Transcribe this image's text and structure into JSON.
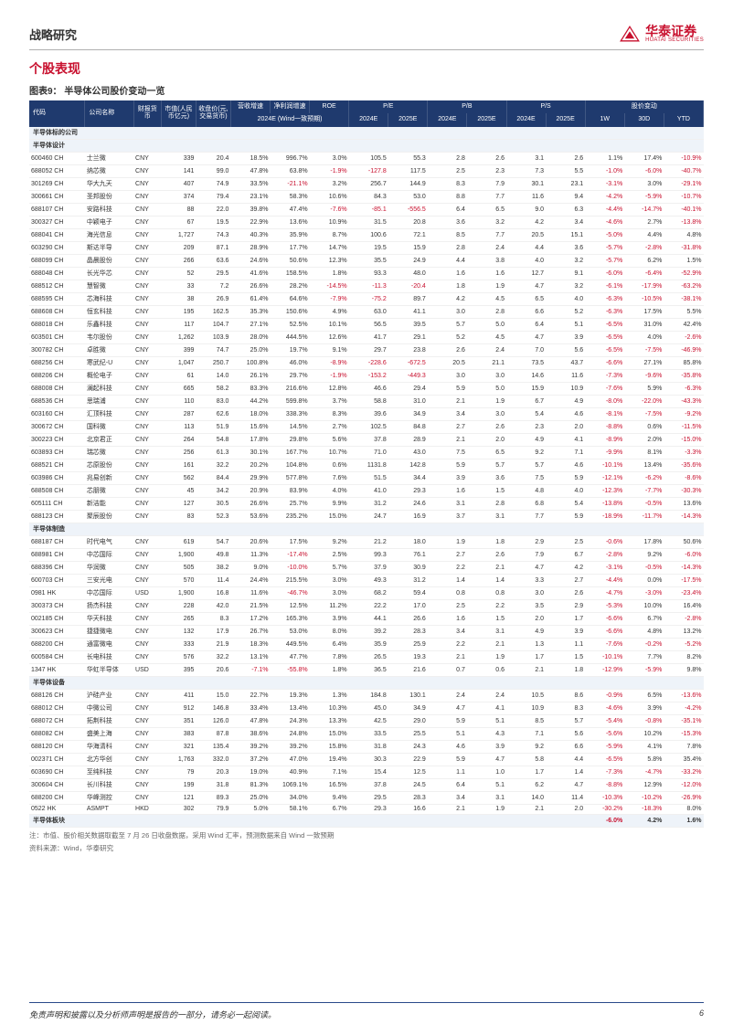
{
  "header": {
    "title": "战略研究"
  },
  "logo": {
    "name": "华泰证券",
    "sub": "HUATAI SECURITIES"
  },
  "section": {
    "title": "个股表现",
    "chart_label": "图表9：",
    "chart_title": "半导体公司股价变动一览"
  },
  "columns": {
    "code": "代码",
    "name": "公司名称",
    "currency": "财报货币",
    "mv": "市值(人民币亿元)",
    "price": "收盘价(元,交易货币)",
    "rev_g": "营收增速",
    "np_g": "净利润增速",
    "roe": "ROE",
    "pe": "P/E",
    "pb": "P/B",
    "ps": "P/S",
    "chg": "股价变动",
    "y24": "2024E",
    "y25": "2025E",
    "sub24": "2024E (Wind一致预期)",
    "w1": "1W",
    "d30": "30D",
    "ytd": "YTD"
  },
  "groups": [
    "半导体标的公司",
    "半导体设计",
    "半导体制造",
    "半导体设备",
    "半导体板块"
  ],
  "rows_design": [
    [
      "600460 CH",
      "士兰微",
      "CNY",
      "339",
      "20.4",
      "18.5%",
      "996.7%",
      "3.0%",
      "105.5",
      "55.3",
      "2.8",
      "2.6",
      "3.1",
      "2.6",
      "1.1%",
      "17.4%",
      "-10.9%"
    ],
    [
      "688052 CH",
      "纳芯微",
      "CNY",
      "141",
      "99.0",
      "47.8%",
      "63.8%",
      "-1.9%",
      "-127.8",
      "117.5",
      "2.5",
      "2.3",
      "7.3",
      "5.5",
      "-1.0%",
      "-6.0%",
      "-40.7%"
    ],
    [
      "301269 CH",
      "华大九天",
      "CNY",
      "407",
      "74.9",
      "33.5%",
      "-21.1%",
      "3.2%",
      "256.7",
      "144.9",
      "8.3",
      "7.9",
      "30.1",
      "23.1",
      "-3.1%",
      "3.0%",
      "-29.1%"
    ],
    [
      "300661 CH",
      "圣邦股份",
      "CNY",
      "374",
      "79.4",
      "23.1%",
      "58.3%",
      "10.6%",
      "84.3",
      "53.0",
      "8.8",
      "7.7",
      "11.6",
      "9.4",
      "-4.2%",
      "-5.9%",
      "-10.7%"
    ],
    [
      "688107 CH",
      "安路科技",
      "CNY",
      "88",
      "22.0",
      "39.8%",
      "47.4%",
      "-7.6%",
      "-85.1",
      "-556.5",
      "6.4",
      "6.5",
      "9.0",
      "6.3",
      "-4.4%",
      "-14.7%",
      "-40.1%"
    ],
    [
      "300327 CH",
      "中颖电子",
      "CNY",
      "67",
      "19.5",
      "22.9%",
      "13.6%",
      "10.9%",
      "31.5",
      "20.8",
      "3.6",
      "3.2",
      "4.2",
      "3.4",
      "-4.6%",
      "2.7%",
      "-13.8%"
    ],
    [
      "688041 CH",
      "海光信息",
      "CNY",
      "1,727",
      "74.3",
      "40.3%",
      "35.9%",
      "8.7%",
      "100.6",
      "72.1",
      "8.5",
      "7.7",
      "20.5",
      "15.1",
      "-5.0%",
      "4.4%",
      "4.8%"
    ],
    [
      "603290 CH",
      "斯达半导",
      "CNY",
      "209",
      "87.1",
      "28.9%",
      "17.7%",
      "14.7%",
      "19.5",
      "15.9",
      "2.8",
      "2.4",
      "4.4",
      "3.6",
      "-5.7%",
      "-2.8%",
      "-31.8%"
    ],
    [
      "688099 CH",
      "晶晨股份",
      "CNY",
      "266",
      "63.6",
      "24.6%",
      "50.6%",
      "12.3%",
      "35.5",
      "24.9",
      "4.4",
      "3.8",
      "4.0",
      "3.2",
      "-5.7%",
      "6.2%",
      "1.5%"
    ],
    [
      "688048 CH",
      "长光华芯",
      "CNY",
      "52",
      "29.5",
      "41.6%",
      "158.5%",
      "1.8%",
      "93.3",
      "48.0",
      "1.6",
      "1.6",
      "12.7",
      "9.1",
      "-6.0%",
      "-6.4%",
      "-52.9%"
    ],
    [
      "688512 CH",
      "慧智微",
      "CNY",
      "33",
      "7.2",
      "26.6%",
      "28.2%",
      "-14.5%",
      "-11.3",
      "-20.4",
      "1.8",
      "1.9",
      "4.7",
      "3.2",
      "-6.1%",
      "-17.9%",
      "-63.2%"
    ],
    [
      "688595 CH",
      "芯海科技",
      "CNY",
      "38",
      "26.9",
      "61.4%",
      "64.6%",
      "-7.9%",
      "-75.2",
      "89.7",
      "4.2",
      "4.5",
      "6.5",
      "4.0",
      "-6.3%",
      "-10.5%",
      "-38.1%"
    ],
    [
      "688608 CH",
      "恒玄科技",
      "CNY",
      "195",
      "162.5",
      "35.3%",
      "150.6%",
      "4.9%",
      "63.0",
      "41.1",
      "3.0",
      "2.8",
      "6.6",
      "5.2",
      "-6.3%",
      "17.5%",
      "5.5%"
    ],
    [
      "688018 CH",
      "乐鑫科技",
      "CNY",
      "117",
      "104.7",
      "27.1%",
      "52.5%",
      "10.1%",
      "56.5",
      "39.5",
      "5.7",
      "5.0",
      "6.4",
      "5.1",
      "-6.5%",
      "31.0%",
      "42.4%"
    ],
    [
      "603501 CH",
      "韦尔股份",
      "CNY",
      "1,262",
      "103.9",
      "28.0%",
      "444.5%",
      "12.6%",
      "41.7",
      "29.1",
      "5.2",
      "4.5",
      "4.7",
      "3.9",
      "-6.5%",
      "4.0%",
      "-2.6%"
    ],
    [
      "300782 CH",
      "卓胜微",
      "CNY",
      "399",
      "74.7",
      "25.0%",
      "19.7%",
      "9.1%",
      "29.7",
      "23.8",
      "2.6",
      "2.4",
      "7.0",
      "5.6",
      "-6.5%",
      "-7.5%",
      "-46.9%"
    ],
    [
      "688256 CH",
      "寒武纪-U",
      "CNY",
      "1,047",
      "250.7",
      "100.8%",
      "46.0%",
      "-8.9%",
      "-228.6",
      "-672.5",
      "20.5",
      "21.1",
      "73.5",
      "43.7",
      "-6.6%",
      "27.1%",
      "85.8%"
    ],
    [
      "688206 CH",
      "概伦电子",
      "CNY",
      "61",
      "14.0",
      "26.1%",
      "29.7%",
      "-1.9%",
      "-153.2",
      "-449.3",
      "3.0",
      "3.0",
      "14.6",
      "11.6",
      "-7.3%",
      "-9.6%",
      "-35.8%"
    ],
    [
      "688008 CH",
      "澜起科技",
      "CNY",
      "665",
      "58.2",
      "83.3%",
      "216.6%",
      "12.8%",
      "46.6",
      "29.4",
      "5.9",
      "5.0",
      "15.9",
      "10.9",
      "-7.6%",
      "5.9%",
      "-6.3%"
    ],
    [
      "688536 CH",
      "思瑞浦",
      "CNY",
      "110",
      "83.0",
      "44.2%",
      "599.8%",
      "3.7%",
      "58.8",
      "31.0",
      "2.1",
      "1.9",
      "6.7",
      "4.9",
      "-8.0%",
      "-22.0%",
      "-43.3%"
    ],
    [
      "603160 CH",
      "汇顶科技",
      "CNY",
      "287",
      "62.6",
      "18.0%",
      "338.3%",
      "8.3%",
      "39.6",
      "34.9",
      "3.4",
      "3.0",
      "5.4",
      "4.6",
      "-8.1%",
      "-7.5%",
      "-9.2%"
    ],
    [
      "300672 CH",
      "国科微",
      "CNY",
      "113",
      "51.9",
      "15.6%",
      "14.5%",
      "2.7%",
      "102.5",
      "84.8",
      "2.7",
      "2.6",
      "2.3",
      "2.0",
      "-8.8%",
      "0.6%",
      "-11.5%"
    ],
    [
      "300223 CH",
      "北京君正",
      "CNY",
      "264",
      "54.8",
      "17.8%",
      "29.8%",
      "5.6%",
      "37.8",
      "28.9",
      "2.1",
      "2.0",
      "4.9",
      "4.1",
      "-8.9%",
      "2.0%",
      "-15.0%"
    ],
    [
      "603893 CH",
      "瑞芯微",
      "CNY",
      "256",
      "61.3",
      "30.1%",
      "167.7%",
      "10.7%",
      "71.0",
      "43.0",
      "7.5",
      "6.5",
      "9.2",
      "7.1",
      "-9.9%",
      "8.1%",
      "-3.3%"
    ],
    [
      "688521 CH",
      "芯原股份",
      "CNY",
      "161",
      "32.2",
      "20.2%",
      "104.8%",
      "0.6%",
      "1131.8",
      "142.8",
      "5.9",
      "5.7",
      "5.7",
      "4.6",
      "-10.1%",
      "13.4%",
      "-35.6%"
    ],
    [
      "603986 CH",
      "兆易创新",
      "CNY",
      "562",
      "84.4",
      "29.9%",
      "577.8%",
      "7.6%",
      "51.5",
      "34.4",
      "3.9",
      "3.6",
      "7.5",
      "5.9",
      "-12.1%",
      "-6.2%",
      "-8.6%"
    ],
    [
      "688508 CH",
      "芯朋微",
      "CNY",
      "45",
      "34.2",
      "20.9%",
      "83.9%",
      "4.0%",
      "41.0",
      "29.3",
      "1.6",
      "1.5",
      "4.8",
      "4.0",
      "-12.3%",
      "-7.7%",
      "-30.3%"
    ],
    [
      "605111 CH",
      "新洁能",
      "CNY",
      "127",
      "30.5",
      "26.6%",
      "25.7%",
      "9.9%",
      "31.2",
      "24.6",
      "3.1",
      "2.8",
      "6.8",
      "5.4",
      "-13.8%",
      "-0.5%",
      "13.6%"
    ],
    [
      "688123 CH",
      "聚辰股份",
      "CNY",
      "83",
      "52.3",
      "53.6%",
      "235.2%",
      "15.0%",
      "24.7",
      "16.9",
      "3.7",
      "3.1",
      "7.7",
      "5.9",
      "-18.9%",
      "-11.7%",
      "-14.3%"
    ]
  ],
  "rows_mfg": [
    [
      "688187 CH",
      "时代电气",
      "CNY",
      "619",
      "54.7",
      "20.6%",
      "17.5%",
      "9.2%",
      "21.2",
      "18.0",
      "1.9",
      "1.8",
      "2.9",
      "2.5",
      "-0.6%",
      "17.8%",
      "50.6%"
    ],
    [
      "688981 CH",
      "中芯国际",
      "CNY",
      "1,900",
      "49.8",
      "11.3%",
      "-17.4%",
      "2.5%",
      "99.3",
      "76.1",
      "2.7",
      "2.6",
      "7.9",
      "6.7",
      "-2.8%",
      "9.2%",
      "-6.0%"
    ],
    [
      "688396 CH",
      "华润微",
      "CNY",
      "505",
      "38.2",
      "9.0%",
      "-10.0%",
      "5.7%",
      "37.9",
      "30.9",
      "2.2",
      "2.1",
      "4.7",
      "4.2",
      "-3.1%",
      "-0.5%",
      "-14.3%"
    ],
    [
      "600703 CH",
      "三安光电",
      "CNY",
      "570",
      "11.4",
      "24.4%",
      "215.5%",
      "3.0%",
      "49.3",
      "31.2",
      "1.4",
      "1.4",
      "3.3",
      "2.7",
      "-4.4%",
      "0.0%",
      "-17.5%"
    ],
    [
      "0981 HK",
      "中芯国际",
      "USD",
      "1,900",
      "16.8",
      "11.6%",
      "-46.7%",
      "3.0%",
      "68.2",
      "59.4",
      "0.8",
      "0.8",
      "3.0",
      "2.6",
      "-4.7%",
      "-3.0%",
      "-23.4%"
    ],
    [
      "300373 CH",
      "扬杰科技",
      "CNY",
      "228",
      "42.0",
      "21.5%",
      "12.5%",
      "11.2%",
      "22.2",
      "17.0",
      "2.5",
      "2.2",
      "3.5",
      "2.9",
      "-5.3%",
      "10.0%",
      "16.4%"
    ],
    [
      "002185 CH",
      "华天科技",
      "CNY",
      "265",
      "8.3",
      "17.2%",
      "165.3%",
      "3.9%",
      "44.1",
      "26.6",
      "1.6",
      "1.5",
      "2.0",
      "1.7",
      "-6.6%",
      "6.7%",
      "-2.8%"
    ],
    [
      "300623 CH",
      "捷捷微电",
      "CNY",
      "132",
      "17.9",
      "26.7%",
      "53.0%",
      "8.0%",
      "39.2",
      "28.3",
      "3.4",
      "3.1",
      "4.9",
      "3.9",
      "-6.6%",
      "4.8%",
      "13.2%"
    ],
    [
      "688200 CH",
      "通富微电",
      "CNY",
      "333",
      "21.9",
      "18.3%",
      "449.5%",
      "6.4%",
      "35.9",
      "25.9",
      "2.2",
      "2.1",
      "1.3",
      "1.1",
      "-7.6%",
      "-0.2%",
      "-5.2%"
    ],
    [
      "600584 CH",
      "长电科技",
      "CNY",
      "576",
      "32.2",
      "13.1%",
      "47.7%",
      "7.8%",
      "26.5",
      "19.3",
      "2.1",
      "1.9",
      "1.7",
      "1.5",
      "-10.1%",
      "7.7%",
      "8.2%"
    ],
    [
      "1347 HK",
      "华虹半导体",
      "USD",
      "395",
      "20.6",
      "-7.1%",
      "-55.8%",
      "1.8%",
      "36.5",
      "21.6",
      "0.7",
      "0.6",
      "2.1",
      "1.8",
      "-12.9%",
      "-5.9%",
      "9.8%"
    ]
  ],
  "rows_equip": [
    [
      "688126 CH",
      "沪硅产业",
      "CNY",
      "411",
      "15.0",
      "22.7%",
      "19.3%",
      "1.3%",
      "184.8",
      "130.1",
      "2.4",
      "2.4",
      "10.5",
      "8.6",
      "-0.9%",
      "6.5%",
      "-13.6%"
    ],
    [
      "688012 CH",
      "中微公司",
      "CNY",
      "912",
      "146.8",
      "33.4%",
      "13.4%",
      "10.3%",
      "45.0",
      "34.9",
      "4.7",
      "4.1",
      "10.9",
      "8.3",
      "-4.6%",
      "3.9%",
      "-4.2%"
    ],
    [
      "688072 CH",
      "拓荆科技",
      "CNY",
      "351",
      "126.0",
      "47.8%",
      "24.3%",
      "13.3%",
      "42.5",
      "29.0",
      "5.9",
      "5.1",
      "8.5",
      "5.7",
      "-5.4%",
      "-0.8%",
      "-35.1%"
    ],
    [
      "688082 CH",
      "盛美上海",
      "CNY",
      "383",
      "87.8",
      "38.6%",
      "24.8%",
      "15.0%",
      "33.5",
      "25.5",
      "5.1",
      "4.3",
      "7.1",
      "5.6",
      "-5.6%",
      "10.2%",
      "-15.3%"
    ],
    [
      "688120 CH",
      "华海清科",
      "CNY",
      "321",
      "135.4",
      "39.2%",
      "39.2%",
      "15.8%",
      "31.8",
      "24.3",
      "4.6",
      "3.9",
      "9.2",
      "6.6",
      "-5.9%",
      "4.1%",
      "7.8%"
    ],
    [
      "002371 CH",
      "北方华创",
      "CNY",
      "1,763",
      "332.0",
      "37.2%",
      "47.0%",
      "19.4%",
      "30.3",
      "22.9",
      "5.9",
      "4.7",
      "5.8",
      "4.4",
      "-6.5%",
      "5.8%",
      "35.4%"
    ],
    [
      "603690 CH",
      "至纯科技",
      "CNY",
      "79",
      "20.3",
      "19.0%",
      "40.9%",
      "7.1%",
      "15.4",
      "12.5",
      "1.1",
      "1.0",
      "1.7",
      "1.4",
      "-7.3%",
      "-4.7%",
      "-33.2%"
    ],
    [
      "300604 CH",
      "长川科技",
      "CNY",
      "199",
      "31.8",
      "81.3%",
      "1069.1%",
      "16.5%",
      "37.8",
      "24.5",
      "6.4",
      "5.1",
      "6.2",
      "4.7",
      "-8.8%",
      "12.9%",
      "-12.0%"
    ],
    [
      "688200 CH",
      "华峰测控",
      "CNY",
      "121",
      "89.3",
      "25.0%",
      "34.0%",
      "9.4%",
      "29.5",
      "28.3",
      "3.4",
      "3.1",
      "14.0",
      "11.4",
      "-10.3%",
      "-10.2%",
      "-26.9%"
    ],
    [
      "0522 HK",
      "ASMPT",
      "HKD",
      "302",
      "79.9",
      "5.0%",
      "58.1%",
      "6.7%",
      "29.3",
      "16.6",
      "2.1",
      "1.9",
      "2.1",
      "2.0",
      "-30.2%",
      "-18.3%",
      "8.0%"
    ]
  ],
  "summary": [
    "-6.0%",
    "4.2%",
    "1.6%"
  ],
  "notes": {
    "n1": "注：市值、股价相关数据取截至 7 月 26 日收盘数据，采用 Wind 汇率，预测数据来自 Wind 一致预期",
    "n2": "资料来源：Wind，华泰研究"
  },
  "footer": {
    "disclaimer": "免责声明和披露以及分析师声明是报告的一部分，请务必一起阅读。",
    "page": "6"
  }
}
